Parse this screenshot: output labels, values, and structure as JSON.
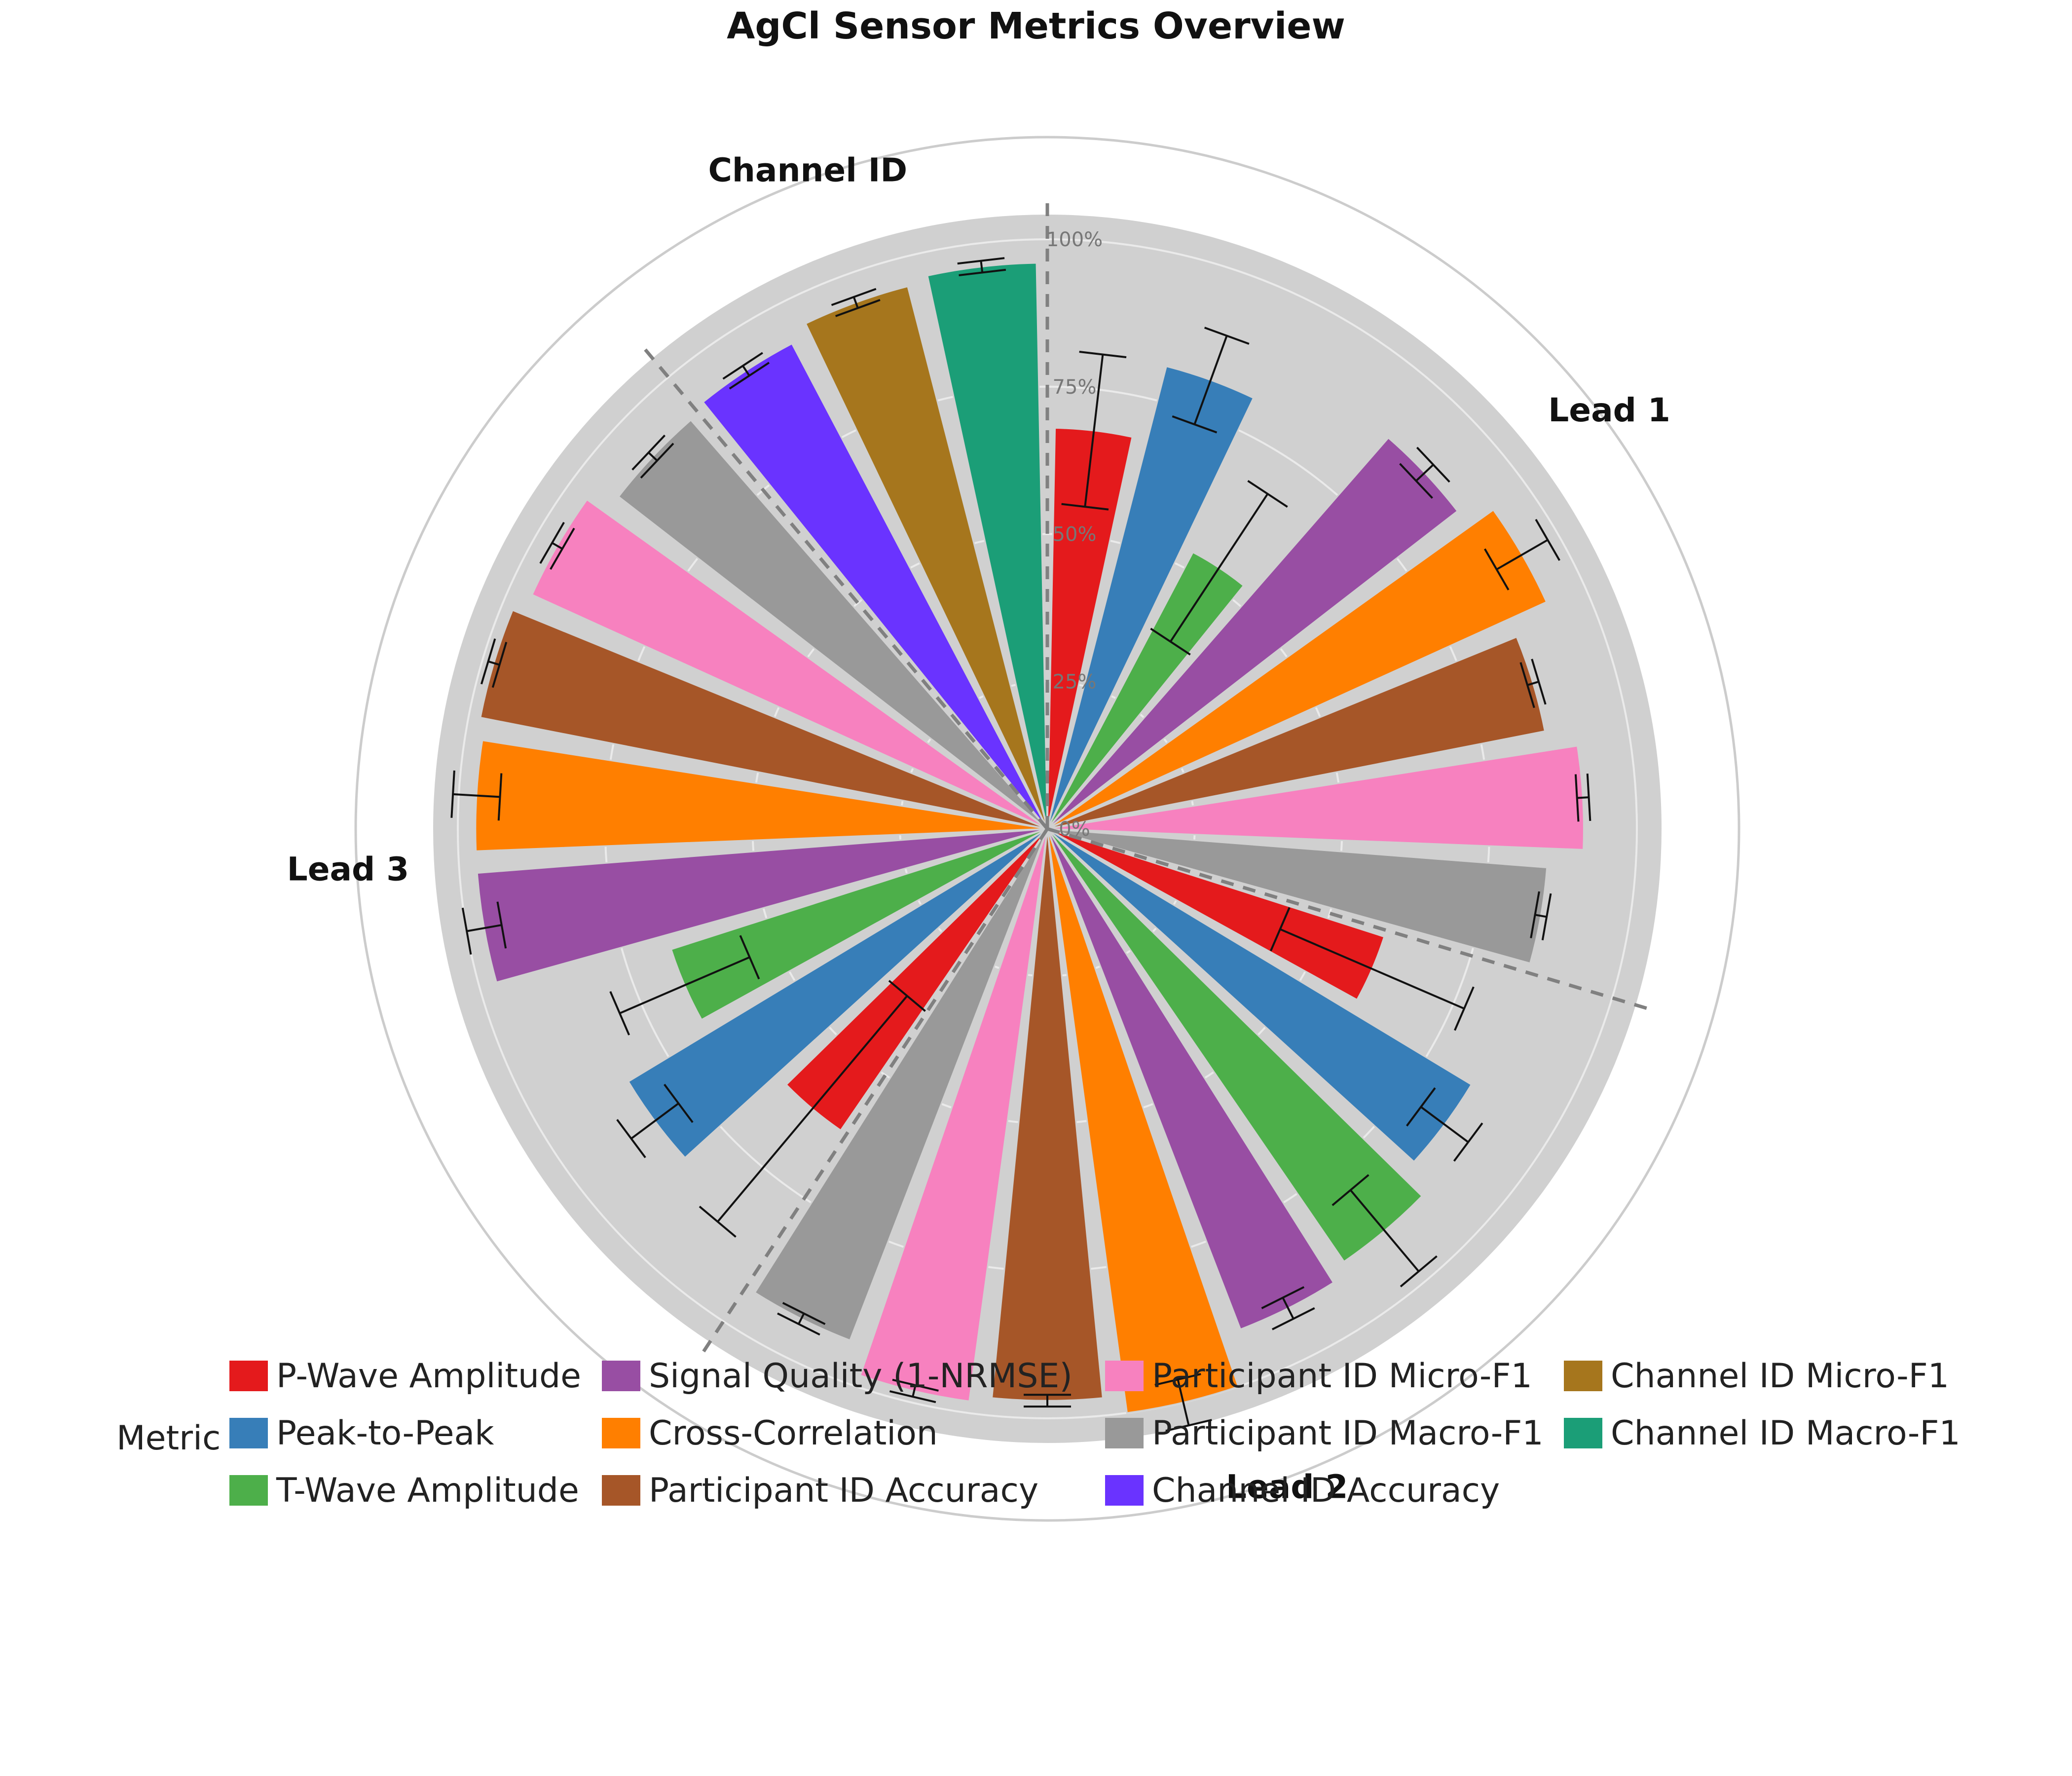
{
  "chart_data": {
    "type": "bar",
    "subtype": "polar-bar",
    "title": "AgCl Sensor Metrics Overview",
    "radial_axis": {
      "range": [
        0,
        1
      ],
      "tick_labels": [
        "0%",
        "25%",
        "50%",
        "75%",
        "100%"
      ],
      "tick_values": [
        0,
        0.25,
        0.5,
        0.75,
        1.0
      ],
      "grid": true
    },
    "legend": {
      "title": "Metric",
      "placement": "bottom"
    },
    "metrics": [
      {
        "name": "P-Wave Amplitude",
        "color": "#e41a1c"
      },
      {
        "name": "Peak-to-Peak",
        "color": "#377eb8"
      },
      {
        "name": "T-Wave Amplitude",
        "color": "#4daf4a"
      },
      {
        "name": "Signal Quality (1-NRMSE)",
        "color": "#984ea3"
      },
      {
        "name": "Cross-Correlation",
        "color": "#ff7f00"
      },
      {
        "name": "Participant ID Accuracy",
        "color": "#a65628"
      },
      {
        "name": "Participant ID Micro-F1",
        "color": "#f781bf"
      },
      {
        "name": "Participant ID Macro-F1",
        "color": "#999999"
      },
      {
        "name": "Channel ID Accuracy",
        "color": "#6a33ff"
      },
      {
        "name": "Channel ID Micro-F1",
        "color": "#a6761d"
      },
      {
        "name": "Channel ID Macro-F1",
        "color": "#1b9e77"
      }
    ],
    "groups": [
      {
        "label": "Lead 1",
        "bars": [
          {
            "metric": "P-Wave Amplitude",
            "value": 0.68,
            "error": 0.13
          },
          {
            "metric": "Peak-to-Peak",
            "value": 0.81,
            "error": 0.08
          },
          {
            "metric": "T-Wave Amplitude",
            "value": 0.53,
            "error": 0.15
          },
          {
            "metric": "Signal Quality (1-NRMSE)",
            "value": 0.88,
            "error": 0.02
          },
          {
            "metric": "Cross-Correlation",
            "value": 0.93,
            "error": 0.05
          },
          {
            "metric": "Participant ID Accuracy",
            "value": 0.86,
            "error": 0.01
          },
          {
            "metric": "Participant ID Micro-F1",
            "value": 0.91,
            "error": 0.01
          },
          {
            "metric": "Participant ID Macro-F1",
            "value": 0.85,
            "error": 0.01
          }
        ]
      },
      {
        "label": "Lead 2",
        "bars": [
          {
            "metric": "P-Wave Amplitude",
            "value": 0.6,
            "error": 0.17
          },
          {
            "metric": "Peak-to-Peak",
            "value": 0.84,
            "error": 0.05
          },
          {
            "metric": "T-Wave Amplitude",
            "value": 0.89,
            "error": 0.09
          },
          {
            "metric": "Signal Quality (1-NRMSE)",
            "value": 0.91,
            "error": 0.02
          },
          {
            "metric": "Cross-Correlation",
            "value": 1.0,
            "error": 0.04
          },
          {
            "metric": "Participant ID Accuracy",
            "value": 0.97,
            "error": 0.01
          },
          {
            "metric": "Participant ID Micro-F1",
            "value": 0.98,
            "error": 0.01
          },
          {
            "metric": "Participant ID Macro-F1",
            "value": 0.93,
            "error": 0.01
          }
        ]
      },
      {
        "label": "Lead 3",
        "bars": [
          {
            "metric": "P-Wave Amplitude",
            "value": 0.62,
            "error": 0.25
          },
          {
            "metric": "Peak-to-Peak",
            "value": 0.83,
            "error": 0.05
          },
          {
            "metric": "T-Wave Amplitude",
            "value": 0.67,
            "error": 0.12
          },
          {
            "metric": "Signal Quality (1-NRMSE)",
            "value": 0.97,
            "error": 0.03
          },
          {
            "metric": "Cross-Correlation",
            "value": 0.97,
            "error": 0.04
          },
          {
            "metric": "Participant ID Accuracy",
            "value": 0.98,
            "error": 0.01
          },
          {
            "metric": "Participant ID Micro-F1",
            "value": 0.96,
            "error": 0.01
          },
          {
            "metric": "Participant ID Macro-F1",
            "value": 0.92,
            "error": 0.01
          }
        ]
      },
      {
        "label": "Channel ID",
        "bars": [
          {
            "metric": "Channel ID Accuracy",
            "value": 0.93,
            "error": 0.01
          },
          {
            "metric": "Channel ID Micro-F1",
            "value": 0.95,
            "error": 0.01
          },
          {
            "metric": "Channel ID Macro-F1",
            "value": 0.96,
            "error": 0.01
          }
        ]
      }
    ]
  }
}
